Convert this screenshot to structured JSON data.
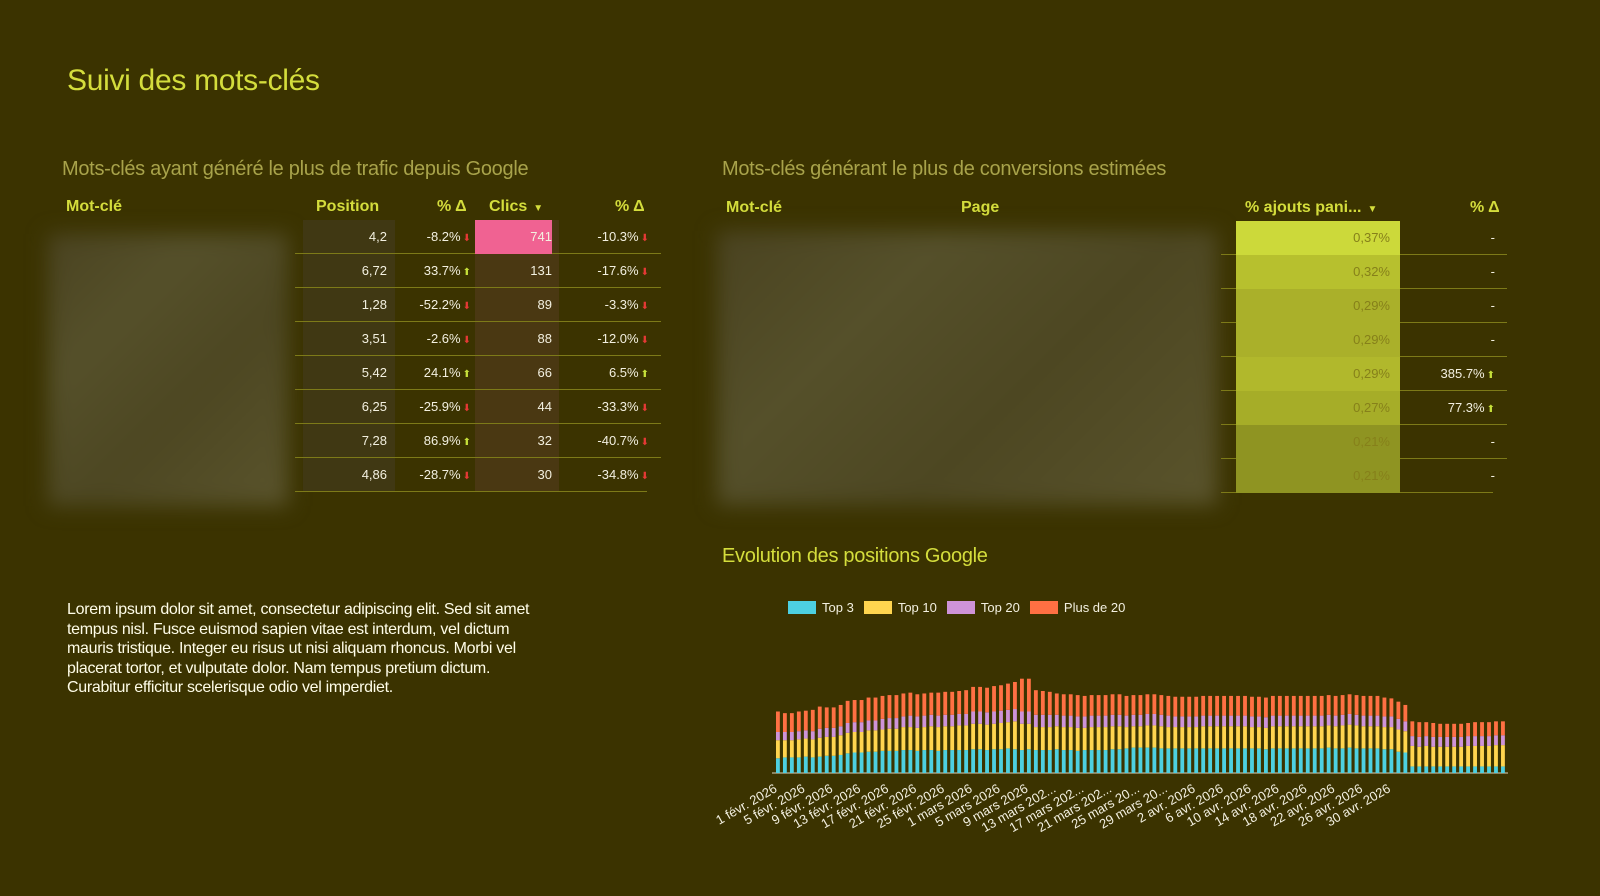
{
  "page": {
    "title": "Suivi des mots-clés"
  },
  "traffic": {
    "title": "Mots-clés ayant généré le plus de trafic depuis Google",
    "headers": {
      "keyword": "Mot-clé",
      "position": "Position",
      "pos_delta": "% Δ",
      "clicks": "Clics",
      "clicks_delta": "% Δ"
    },
    "rows": [
      {
        "position": "4,2",
        "pos_delta": "-8.2%",
        "pos_dir": "down",
        "clicks": "741",
        "clicks_delta": "-10.3%",
        "clicks_dir": "down"
      },
      {
        "position": "6,72",
        "pos_delta": "33.7%",
        "pos_dir": "up",
        "clicks": "131",
        "clicks_delta": "-17.6%",
        "clicks_dir": "down"
      },
      {
        "position": "1,28",
        "pos_delta": "-52.2%",
        "pos_dir": "down",
        "clicks": "89",
        "clicks_delta": "-3.3%",
        "clicks_dir": "down"
      },
      {
        "position": "3,51",
        "pos_delta": "-2.6%",
        "pos_dir": "down",
        "clicks": "88",
        "clicks_delta": "-12.0%",
        "clicks_dir": "down"
      },
      {
        "position": "5,42",
        "pos_delta": "24.1%",
        "pos_dir": "up",
        "clicks": "66",
        "clicks_delta": "6.5%",
        "clicks_dir": "up"
      },
      {
        "position": "6,25",
        "pos_delta": "-25.9%",
        "pos_dir": "down",
        "clicks": "44",
        "clicks_delta": "-33.3%",
        "clicks_dir": "down"
      },
      {
        "position": "7,28",
        "pos_delta": "86.9%",
        "pos_dir": "up",
        "clicks": "32",
        "clicks_delta": "-40.7%",
        "clicks_dir": "down"
      },
      {
        "position": "4,86",
        "pos_delta": "-28.7%",
        "pos_dir": "down",
        "clicks": "30",
        "clicks_delta": "-34.8%",
        "clicks_dir": "down"
      }
    ]
  },
  "conversions": {
    "title": "Mots-clés générant le plus de conversions estimées",
    "headers": {
      "keyword": "Mot-clé",
      "page": "Page",
      "cart": "% ajouts pani...",
      "delta": "% Δ"
    },
    "rows": [
      {
        "cart": "0,37%",
        "delta": "-",
        "dir": ""
      },
      {
        "cart": "0,32%",
        "delta": "-",
        "dir": ""
      },
      {
        "cart": "0,29%",
        "delta": "-",
        "dir": ""
      },
      {
        "cart": "0,29%",
        "delta": "-",
        "dir": ""
      },
      {
        "cart": "0,29%",
        "delta": "385.7%",
        "dir": "up"
      },
      {
        "cart": "0,27%",
        "delta": "77.3%",
        "dir": "up"
      },
      {
        "cart": "0,21%",
        "delta": "-",
        "dir": ""
      },
      {
        "cart": "0,21%",
        "delta": "-",
        "dir": ""
      }
    ]
  },
  "text_block": "Lorem ipsum dolor sit amet, consectetur adipiscing elit. Sed sit amet tempus nisl. Fusce euismod sapien vitae est interdum, vel dictum mauris tristique. Integer eu risus ut nisi aliquam rhoncus. Morbi vel placerat tortor, et vulputate dolor. Nam tempus pretium dictum. Curabitur efficitur scelerisque odio vel imperdiet.",
  "colors": {
    "top3": "#4dd0e1",
    "top10": "#ffd54f",
    "top20": "#ce93d8",
    "plus20": "#ff7043",
    "accent": "#d4dd3c",
    "highlight": "#f06292"
  },
  "chart_data": {
    "type": "bar",
    "stacked": true,
    "title": "Evolution des positions Google",
    "legend_position": "top-left",
    "grid": false,
    "tick_labels": [
      "1 févr. 2026",
      "5 févr. 2026",
      "9 févr. 2026",
      "13 févr. 2026",
      "17 févr. 2026",
      "21 févr. 2026",
      "25 févr. 2026",
      "1 mars 2026",
      "5 mars 2026",
      "9 mars 2026",
      "13 mars 202...",
      "17 mars 202...",
      "21 mars 202...",
      "25 mars 20...",
      "29 mars 20...",
      "2 avr. 2026",
      "6 avr. 2026",
      "10 avr. 2026",
      "14 avr. 2026",
      "18 avr. 2026",
      "22 avr. 2026",
      "26 avr. 2026",
      "30 avr. 2026"
    ],
    "series": [
      {
        "name": "Top 3",
        "values": [
          18,
          19,
          19,
          19,
          20,
          19,
          20,
          21,
          21,
          22,
          24,
          25,
          25,
          26,
          26,
          27,
          27,
          27,
          28,
          28,
          27,
          28,
          28,
          27,
          28,
          28,
          28,
          28,
          29,
          29,
          28,
          29,
          29,
          30,
          29,
          28,
          29,
          28,
          28,
          28,
          29,
          28,
          28,
          27,
          28,
          28,
          28,
          28,
          29,
          29,
          30,
          31,
          31,
          31,
          31,
          30,
          30,
          30,
          30,
          30,
          30,
          30,
          30,
          30,
          30,
          30,
          30,
          30,
          30,
          30,
          29,
          30,
          30,
          30,
          30,
          30,
          30,
          30,
          30,
          31,
          30,
          30,
          31,
          30,
          30,
          30,
          30,
          29,
          29,
          26,
          25,
          8,
          8,
          8,
          8,
          8,
          8,
          8,
          8,
          8,
          8,
          8,
          8,
          8,
          8
        ]
      },
      {
        "name": "Top 10",
        "values": [
          22,
          21,
          21,
          22,
          22,
          22,
          23,
          23,
          23,
          24,
          25,
          25,
          25,
          26,
          26,
          26,
          27,
          27,
          28,
          28,
          28,
          28,
          29,
          29,
          29,
          29,
          30,
          30,
          31,
          31,
          31,
          31,
          32,
          32,
          34,
          32,
          31,
          28,
          28,
          28,
          28,
          28,
          28,
          28,
          27,
          28,
          28,
          28,
          28,
          28,
          26,
          26,
          26,
          27,
          27,
          27,
          26,
          26,
          26,
          26,
          26,
          27,
          27,
          27,
          27,
          27,
          27,
          27,
          26,
          26,
          26,
          27,
          27,
          27,
          27,
          27,
          27,
          27,
          27,
          27,
          27,
          28,
          28,
          28,
          27,
          27,
          27,
          27,
          27,
          27,
          26,
          25,
          24,
          25,
          24,
          24,
          24,
          24,
          24,
          25,
          25,
          25,
          25,
          26,
          26
        ]
      },
      {
        "name": "Top 20",
        "values": [
          10,
          10,
          10,
          10,
          10,
          10,
          11,
          11,
          11,
          11,
          12,
          12,
          12,
          12,
          12,
          13,
          13,
          13,
          13,
          14,
          14,
          14,
          14,
          14,
          14,
          14,
          14,
          14,
          15,
          15,
          15,
          15,
          15,
          15,
          15,
          15,
          15,
          15,
          15,
          15,
          14,
          14,
          14,
          14,
          14,
          14,
          14,
          14,
          14,
          14,
          14,
          14,
          14,
          14,
          14,
          14,
          14,
          13,
          13,
          13,
          13,
          13,
          13,
          13,
          13,
          13,
          13,
          13,
          13,
          13,
          13,
          13,
          13,
          13,
          13,
          13,
          13,
          13,
          13,
          13,
          13,
          13,
          13,
          13,
          13,
          13,
          13,
          13,
          13,
          13,
          12,
          12,
          12,
          12,
          12,
          12,
          12,
          12,
          12,
          12,
          12,
          12,
          12,
          12,
          12
        ]
      },
      {
        "name": "Plus de 20",
        "values": [
          25,
          23,
          23,
          24,
          24,
          26,
          27,
          25,
          25,
          26,
          27,
          27,
          27,
          28,
          28,
          28,
          28,
          28,
          28,
          28,
          27,
          27,
          27,
          28,
          28,
          28,
          28,
          29,
          30,
          30,
          30,
          31,
          31,
          32,
          33,
          40,
          40,
          30,
          29,
          28,
          26,
          26,
          26,
          26,
          25,
          25,
          25,
          25,
          25,
          25,
          24,
          24,
          24,
          24,
          24,
          24,
          24,
          24,
          24,
          24,
          24,
          24,
          24,
          24,
          24,
          24,
          24,
          24,
          24,
          24,
          24,
          24,
          24,
          24,
          24,
          24,
          24,
          24,
          24,
          24,
          24,
          24,
          24,
          24,
          24,
          24,
          24,
          23,
          22,
          21,
          20,
          18,
          18,
          17,
          17,
          16,
          16,
          16,
          16,
          16,
          17,
          17,
          17,
          17,
          17
        ]
      }
    ]
  }
}
